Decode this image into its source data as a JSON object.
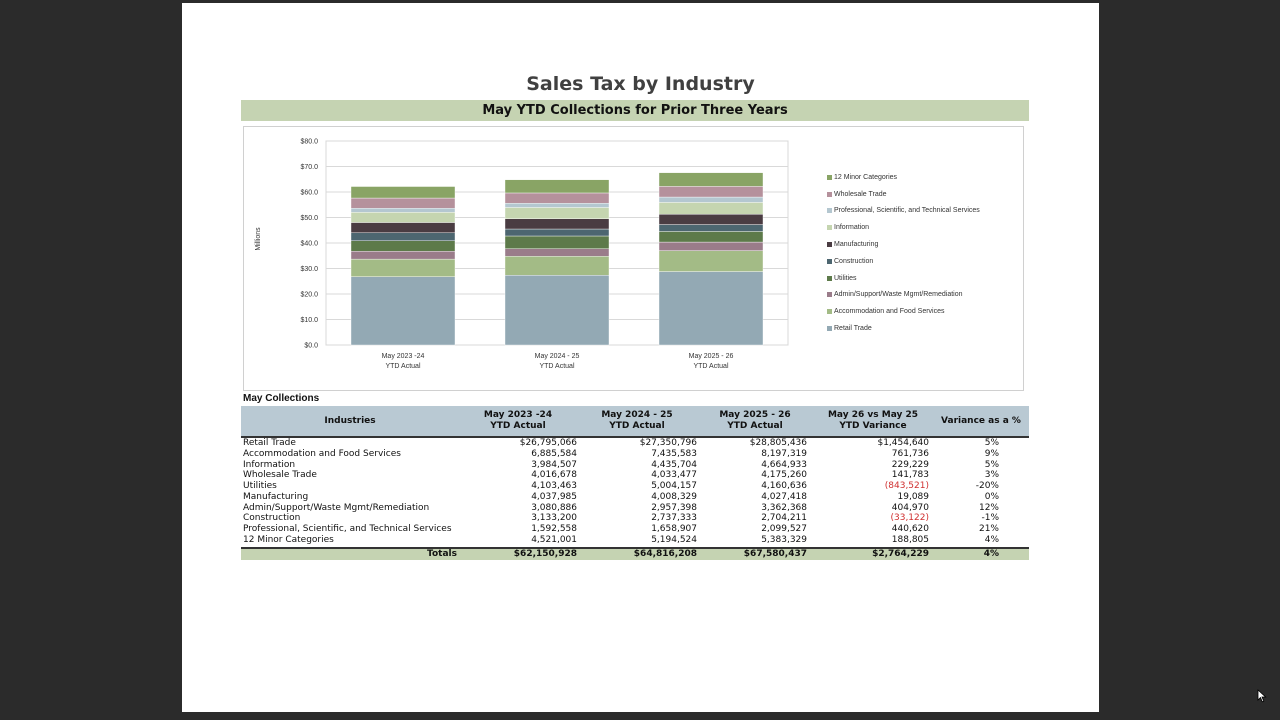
{
  "title": "Sales Tax by Industry",
  "subtitle": "May YTD Collections for Prior Three Years",
  "chart_data": {
    "type": "bar",
    "stacked": true,
    "ylabel": "Millions",
    "ylim": [
      0,
      80
    ],
    "y_ticks": [
      "$0.0",
      "$10.0",
      "$20.0",
      "$30.0",
      "$40.0",
      "$50.0",
      "$60.0",
      "$70.0",
      "$80.0"
    ],
    "categories": [
      [
        "May 2023 -24",
        "YTD Actual"
      ],
      [
        "May 2024 - 25",
        "YTD Actual"
      ],
      [
        "May 2025 - 26",
        "YTD Actual"
      ]
    ],
    "legend_position": "right",
    "series": [
      {
        "name": "Retail Trade",
        "color": "#93a9b4",
        "values": [
          26.795066,
          27.350796,
          28.805436
        ]
      },
      {
        "name": "Accommodation and Food Services",
        "color": "#a3bb86",
        "values": [
          6.885584,
          7.435583,
          8.197319
        ]
      },
      {
        "name": "Admin/Support/Waste Mgmt/Remediation",
        "color": "#9a7c8a",
        "values": [
          3.080886,
          2.957398,
          3.362368
        ]
      },
      {
        "name": "Utilities",
        "color": "#5d7a4a",
        "values": [
          4.103463,
          5.004157,
          4.160636
        ]
      },
      {
        "name": "Construction",
        "color": "#4d6670",
        "values": [
          3.1332,
          2.737333,
          2.704211
        ]
      },
      {
        "name": "Manufacturing",
        "color": "#4a3c42",
        "values": [
          4.037985,
          4.008329,
          4.027418
        ]
      },
      {
        "name": "Information",
        "color": "#c5d5b0",
        "values": [
          3.984507,
          4.435704,
          4.664933
        ]
      },
      {
        "name": "Professional, Scientific, and Technical Services",
        "color": "#b4c7d0",
        "values": [
          1.592558,
          1.658907,
          2.099527
        ]
      },
      {
        "name": "Wholesale Trade",
        "color": "#b5919c",
        "values": [
          4.016678,
          4.033477,
          4.17526
        ]
      },
      {
        "name": "12 Minor Categories",
        "color": "#89a465",
        "values": [
          4.521001,
          5.194524,
          5.383329
        ]
      }
    ]
  },
  "legend_items": [
    {
      "name": "12 Minor Categories",
      "color": "#89a465"
    },
    {
      "name": "Wholesale Trade",
      "color": "#b5919c"
    },
    {
      "name": "Professional, Scientific, and Technical Services",
      "color": "#b4c7d0"
    },
    {
      "name": "Information",
      "color": "#c5d5b0"
    },
    {
      "name": "Manufacturing",
      "color": "#4a3c42"
    },
    {
      "name": "Construction",
      "color": "#4d6670"
    },
    {
      "name": "Utilities",
      "color": "#5d7a4a"
    },
    {
      "name": "Admin/Support/Waste Mgmt/Remediation",
      "color": "#9a7c8a"
    },
    {
      "name": "Accommodation and Food Services",
      "color": "#a3bb86"
    },
    {
      "name": "Retail Trade",
      "color": "#93a9b4"
    }
  ],
  "table": {
    "section_label": "May Collections",
    "headers": {
      "industries": "Industries",
      "col1": [
        "May 2023 -24",
        "YTD Actual"
      ],
      "col2": [
        "May 2024 - 25",
        "YTD Actual"
      ],
      "col3": [
        "May 2025 - 26",
        "YTD Actual"
      ],
      "col4": [
        "May 26 vs May 25",
        "YTD Variance"
      ],
      "col5": "Variance as a %"
    },
    "rows": [
      {
        "name": "Retail Trade",
        "v1": "$26,795,066",
        "v2": "$27,350,796",
        "v3": "$28,805,436",
        "var": "$1,454,640",
        "pct": "5%",
        "neg": false
      },
      {
        "name": "Accommodation and Food Services",
        "v1": "6,885,584",
        "v2": "7,435,583",
        "v3": "8,197,319",
        "var": "761,736",
        "pct": "9%",
        "neg": false
      },
      {
        "name": "Information",
        "v1": "3,984,507",
        "v2": "4,435,704",
        "v3": "4,664,933",
        "var": "229,229",
        "pct": "5%",
        "neg": false
      },
      {
        "name": "Wholesale Trade",
        "v1": "4,016,678",
        "v2": "4,033,477",
        "v3": "4,175,260",
        "var": "141,783",
        "pct": "3%",
        "neg": false
      },
      {
        "name": "Utilities",
        "v1": "4,103,463",
        "v2": "5,004,157",
        "v3": "4,160,636",
        "var": "(843,521)",
        "pct": "-20%",
        "neg": true
      },
      {
        "name": "Manufacturing",
        "v1": "4,037,985",
        "v2": "4,008,329",
        "v3": "4,027,418",
        "var": "19,089",
        "pct": "0%",
        "neg": false
      },
      {
        "name": "Admin/Support/Waste Mgmt/Remediation",
        "v1": "3,080,886",
        "v2": "2,957,398",
        "v3": "3,362,368",
        "var": "404,970",
        "pct": "12%",
        "neg": false
      },
      {
        "name": "Construction",
        "v1": "3,133,200",
        "v2": "2,737,333",
        "v3": "2,704,211",
        "var": "(33,122)",
        "pct": "-1%",
        "neg": true
      },
      {
        "name": "Professional, Scientific, and Technical Services",
        "v1": "1,592,558",
        "v2": "1,658,907",
        "v3": "2,099,527",
        "var": "440,620",
        "pct": "21%",
        "neg": false
      },
      {
        "name": "12 Minor Categories",
        "v1": "4,521,001",
        "v2": "5,194,524",
        "v3": "5,383,329",
        "var": "188,805",
        "pct": "4%",
        "neg": false
      }
    ],
    "totals": {
      "label": "Totals",
      "v1": "$62,150,928",
      "v2": "$64,816,208",
      "v3": "$67,580,437",
      "var": "$2,764,229",
      "pct": "4%"
    }
  }
}
